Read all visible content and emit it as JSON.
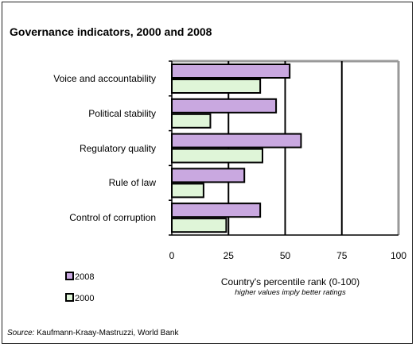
{
  "chart_data": {
    "type": "bar",
    "orientation": "horizontal",
    "title": "Governance indicators, 2000 and 2008",
    "categories": [
      "Voice and  accountability",
      "Political stability",
      "Regulatory quality",
      "Rule of law",
      "Control of corruption"
    ],
    "series": [
      {
        "name": "2008",
        "color": "#c9a8e0",
        "values": [
          52,
          46,
          57,
          32,
          39
        ]
      },
      {
        "name": "2000",
        "color": "#dff5d8",
        "values": [
          39,
          17,
          40,
          14,
          24
        ]
      }
    ],
    "xlim": [
      0,
      100
    ],
    "xticks": [
      "0",
      "25",
      "50",
      "75",
      "100"
    ],
    "xlabel": "Country's percentile rank (0-100)",
    "xlabel_note": "higher values imply better ratings",
    "grid": true,
    "legend_position": "bottom-left"
  },
  "source": {
    "label": "Source:",
    "text": " Kaufmann-Kraay-Mastruzzi,  World Bank"
  }
}
